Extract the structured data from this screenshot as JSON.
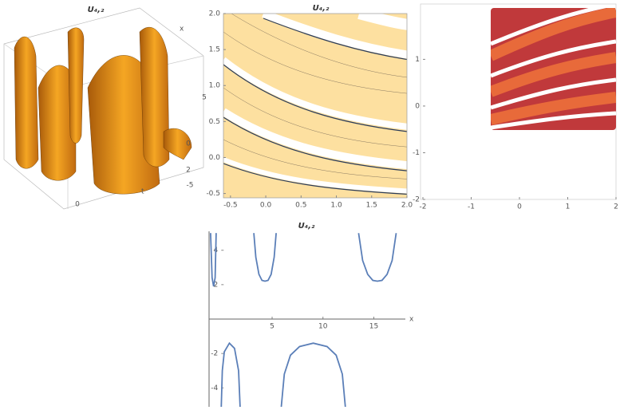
{
  "chart_data": [
    {
      "type": "surface3d",
      "title": "U₄,₂",
      "xlabel": "x",
      "ylabel": "t",
      "ticks": [
        "5",
        "0",
        "-5",
        "2",
        "0"
      ]
    },
    {
      "type": "contour",
      "title": "U₄,₂",
      "xlim": [
        -0.6,
        2.0
      ],
      "ylim": [
        -0.56,
        2.0
      ],
      "xticks": [
        -0.5,
        {
          "value": 0,
          "label": "0.0"
        },
        0.5,
        {
          "value": 1,
          "label": "1.0"
        },
        1.5,
        {
          "value": 2,
          "label": "2.0"
        }
      ],
      "yticks": [
        -0.5,
        {
          "value": 0,
          "label": "0.0"
        },
        0.5,
        {
          "value": 1,
          "label": "1.0"
        },
        1.5,
        {
          "value": 2,
          "label": "2.0"
        }
      ]
    },
    {
      "type": "density",
      "xlim": [
        -2,
        2
      ],
      "ylim": [
        -2,
        2.1
      ],
      "xticks": [
        -2,
        -1,
        0,
        1,
        2
      ],
      "yticks": [
        -2,
        -1,
        0,
        1
      ]
    },
    {
      "type": "line",
      "title": "U₄,₂",
      "xlabel": "x",
      "color": "#5b7fb8",
      "xlim": [
        -1.2,
        18.1
      ],
      "ylim": [
        -5.1,
        5.1
      ],
      "xticks": [
        5,
        10,
        15
      ],
      "yticks": [
        -4,
        -2,
        2,
        4
      ],
      "x": [
        -1.05,
        -0.9,
        -0.75,
        -0.6,
        -0.5,
        null,
        3.2,
        3.4,
        3.7,
        4.0,
        4.3,
        4.6,
        4.9,
        5.2,
        5.4,
        null,
        13.5,
        13.9,
        14.4,
        14.9,
        15.35,
        15.8,
        16.3,
        16.8,
        17.2,
        null,
        0.0,
        0.1,
        0.3,
        0.8,
        1.3,
        1.7,
        1.85,
        null,
        5.9,
        6.2,
        6.8,
        7.7,
        9.05,
        10.4,
        11.3,
        11.9,
        12.2
      ],
      "values": [
        5,
        2.4,
        1.9,
        2.4,
        5,
        null,
        5,
        3.6,
        2.6,
        2.25,
        2.2,
        2.25,
        2.6,
        3.6,
        5,
        null,
        5,
        3.4,
        2.6,
        2.25,
        2.2,
        2.25,
        2.6,
        3.4,
        5,
        null,
        -5.1,
        -3,
        -1.9,
        -1.4,
        -1.7,
        -3,
        -5.1,
        null,
        -5.1,
        -3.2,
        -2.1,
        -1.6,
        -1.4,
        -1.6,
        -2.1,
        -3.2,
        -5.1
      ]
    }
  ]
}
